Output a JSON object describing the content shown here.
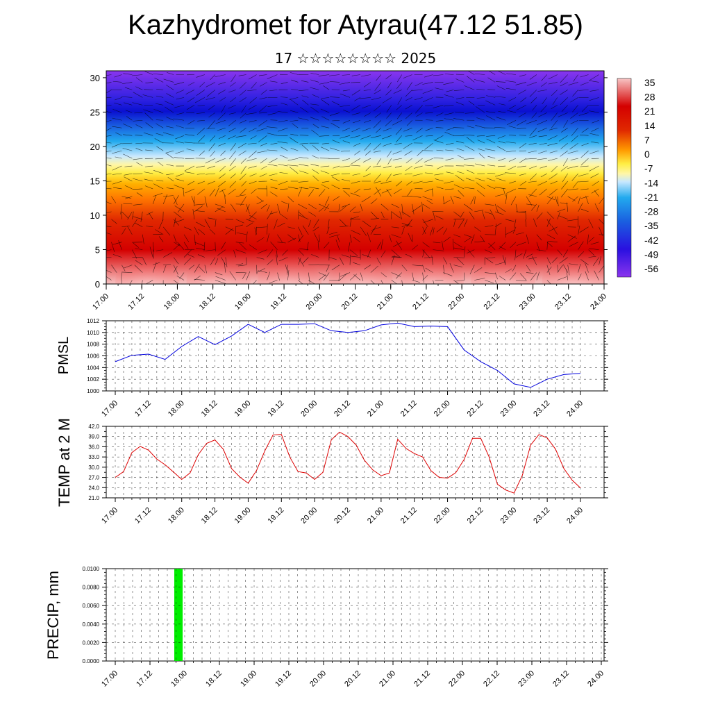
{
  "title": "Kazhydromet for Atyrau(47.12 51.85)",
  "subtitle": "17 ☆☆☆☆☆☆☆☆ 2025",
  "chart_data": [
    {
      "type": "heatmap",
      "name": "temperature-wind-cross-section",
      "x_ticks": [
        "17.00",
        "17.12",
        "18.00",
        "18.12",
        "19.00",
        "19.12",
        "20.00",
        "20.12",
        "21.00",
        "21.12",
        "22.00",
        "22.12",
        "23.00",
        "23.12",
        "24.00"
      ],
      "y_ticks": [
        0,
        5,
        10,
        15,
        20,
        25,
        30
      ],
      "ylim": [
        0,
        31
      ],
      "colorbar_labels": [
        "35",
        "28",
        "21",
        "14",
        "7",
        "0",
        "-7",
        "-14",
        "-21",
        "-28",
        "-35",
        "-42",
        "-49",
        "-56"
      ],
      "colors": {
        "hot": "#f8c8c8",
        "red": "#e00000",
        "orange": "#ff8800",
        "yellow": "#ffee44",
        "lightblue": "#aaddff",
        "cyan": "#22aaee",
        "blue": "#1010d0",
        "violet": "#8833ee"
      }
    },
    {
      "type": "line",
      "ylabel": "PMSL",
      "ylim": [
        1000,
        1012
      ],
      "y_ticks": [
        "1000",
        "1002",
        "1004",
        "1006",
        "1008",
        "1010",
        "1012"
      ],
      "x_ticks": [
        "17.00",
        "17.12",
        "18.00",
        "18.12",
        "19.00",
        "19.12",
        "20.00",
        "20.12",
        "21.00",
        "21.12",
        "22.00",
        "22.12",
        "23.00",
        "23.12",
        "24.00"
      ],
      "x": [
        0,
        0.25,
        0.5,
        0.75,
        1,
        1.25,
        1.5,
        1.75,
        2,
        2.25,
        2.5,
        2.75,
        3,
        3.25,
        3.5,
        3.75,
        4,
        4.25,
        4.5,
        4.75,
        5,
        5.25,
        5.5,
        5.75,
        6,
        6.25,
        6.5,
        6.75,
        7
      ],
      "series": [
        {
          "color": "#0000dd",
          "values": [
            1005.0,
            1006.1,
            1006.3,
            1005.4,
            1007.6,
            1009.3,
            1007.9,
            1009.4,
            1011.4,
            1010.0,
            1011.4,
            1011.4,
            1011.5,
            1010.3,
            1010.0,
            1010.3,
            1011.3,
            1011.6,
            1011.0,
            1011.1,
            1011.0,
            1007.0,
            1005.0,
            1003.5,
            1001.2,
            1000.6,
            1002.0,
            1002.8,
            1003.0
          ]
        }
      ]
    },
    {
      "type": "line",
      "ylabel": "TEMP at 2 M",
      "ylim": [
        21,
        42
      ],
      "y_ticks": [
        "21.0",
        "24.0",
        "27.0",
        "30.0",
        "33.0",
        "36.0",
        "39.0",
        "42.0"
      ],
      "x_ticks": [
        "17.00",
        "17.12",
        "18.00",
        "18.12",
        "19.00",
        "19.12",
        "20.00",
        "20.12",
        "21.00",
        "21.12",
        "22.00",
        "22.12",
        "23.00",
        "23.12",
        "24.00"
      ],
      "x": [
        0,
        0.125,
        0.25,
        0.375,
        0.5,
        0.625,
        0.75,
        0.875,
        1,
        1.125,
        1.25,
        1.375,
        1.5,
        1.625,
        1.75,
        1.875,
        2,
        2.125,
        2.25,
        2.375,
        2.5,
        2.625,
        2.75,
        2.875,
        3,
        3.125,
        3.25,
        3.375,
        3.5,
        3.625,
        3.75,
        3.875,
        4,
        4.125,
        4.25,
        4.375,
        4.5,
        4.625,
        4.75,
        4.875,
        5,
        5.125,
        5.25,
        5.375,
        5.5,
        5.625,
        5.75,
        5.875,
        6,
        6.125,
        6.25,
        6.375,
        6.5,
        6.625,
        6.75,
        6.875,
        7
      ],
      "series": [
        {
          "color": "#dd0000",
          "values": [
            27.0,
            28.7,
            34.3,
            36.1,
            35.0,
            32.4,
            30.7,
            28.6,
            26.4,
            28.3,
            33.7,
            37.0,
            38.0,
            35.3,
            29.6,
            27.1,
            25.3,
            29.0,
            34.8,
            39.5,
            39.6,
            33.0,
            28.7,
            28.3,
            26.4,
            28.5,
            38.0,
            40.3,
            39.0,
            36.5,
            32.0,
            29.2,
            27.5,
            28.3,
            38.2,
            35.5,
            34.0,
            33.0,
            29.0,
            27.0,
            26.8,
            28.4,
            32.3,
            38.5,
            38.5,
            33.0,
            25.0,
            23.3,
            22.4,
            27.6,
            36.5,
            39.6,
            38.6,
            35.3,
            29.6,
            26.2,
            23.9
          ]
        }
      ]
    },
    {
      "type": "bar",
      "ylabel": "PRECIP, mm",
      "ylim": [
        0,
        0.01
      ],
      "y_ticks": [
        "0.0000",
        "0.0020",
        "0.0040",
        "0.0060",
        "0.0080",
        "0.0100"
      ],
      "x_ticks": [
        "17.00",
        "17.12",
        "18.00",
        "18.12",
        "19.00",
        "19.12",
        "20.00",
        "20.12",
        "21.00",
        "21.12",
        "22.00",
        "22.12",
        "23.00",
        "23.12",
        "24.00"
      ],
      "bars": [
        {
          "x_start": 0.85,
          "x_end": 0.97,
          "value": 0.01,
          "color": "#00ee00"
        }
      ]
    }
  ]
}
